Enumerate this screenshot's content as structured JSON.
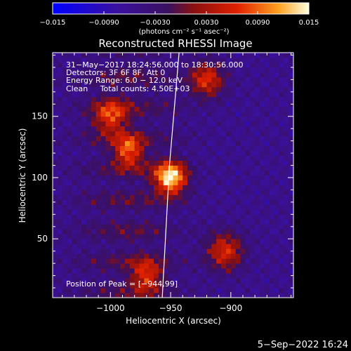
{
  "chart_data": {
    "type": "heatmap",
    "title": "Reconstructed RHESSI Image",
    "xlabel": "Heliocentric X (arcsec)",
    "ylabel": "Heliocentric Y (arcsec)",
    "xlim": [
      -1048,
      -848
    ],
    "ylim": [
      2,
      202
    ],
    "x_ticks": [
      -1000,
      -950,
      -900
    ],
    "x_tick_labels": [
      "−1000",
      "−950",
      "−900"
    ],
    "y_ticks": [
      50,
      100,
      150
    ],
    "y_tick_labels": [
      "50",
      "100",
      "150"
    ],
    "colorbar": {
      "min": -0.015,
      "max": 0.015,
      "ticks": [
        -0.015,
        -0.009,
        -0.003,
        0.003,
        0.009,
        0.015
      ],
      "tick_labels": [
        "−0.015",
        "−0.0090",
        "−0.0030",
        "0.0030",
        "0.0090",
        "0.015"
      ],
      "units_label": "(photons cm⁻² s⁻¹ asec⁻²)",
      "placement": "top"
    },
    "annotations": [
      "31−May−2017 18:24:56.000 to 18:30:56.000",
      "Detectors: 3F 6F 8F, Att 0",
      "Energy Range: 6.0 − 12.0 keV",
      "Clean     Total counts: 4.50E+03"
    ],
    "peak_label": "Position of Peak = [−944,99]",
    "peak": {
      "x": -944,
      "y": 99,
      "value": 0.015
    },
    "sources": [
      {
        "x": -950,
        "y": 100,
        "radius": 13,
        "value": 0.0145
      },
      {
        "x": -985,
        "y": 122,
        "radius": 12,
        "value": 0.0075
      },
      {
        "x": -1000,
        "y": 150,
        "radius": 14,
        "value": 0.006
      },
      {
        "x": -920,
        "y": 180,
        "radius": 14,
        "value": 0.006
      },
      {
        "x": -905,
        "y": 40,
        "radius": 15,
        "value": 0.006
      },
      {
        "x": -970,
        "y": 20,
        "radius": 13,
        "value": 0.0055
      }
    ],
    "limb": [
      [
        -943,
        202
      ],
      [
        -951,
        110
      ],
      [
        -957,
        2
      ]
    ],
    "grid": false
  },
  "timestamp": "5−Sep−2022 16:24"
}
